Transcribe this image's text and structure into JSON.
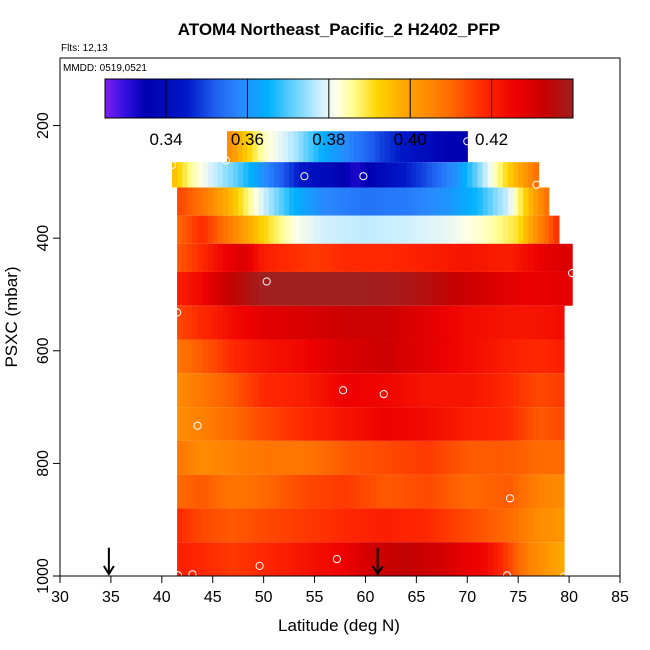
{
  "chart_data": {
    "type": "heatmap",
    "title": "ATOM4 Northeast_Pacific_2 H2402_PFP",
    "flights_note": "Flts: 12,13",
    "date_note": "MMDD: 0519,0521",
    "xlabel": "Latitude (deg N)",
    "ylabel": "PSXC (mbar)",
    "xlim": [
      30,
      85
    ],
    "ylim": [
      1000,
      80
    ],
    "y_reversed": true,
    "grid": false,
    "x_ticks": [
      30,
      35,
      40,
      45,
      50,
      55,
      60,
      65,
      70,
      75,
      80,
      85
    ],
    "y_ticks": [
      200,
      400,
      600,
      800,
      1000
    ],
    "colorbar": {
      "placement": "top, inside plot",
      "range": [
        0.325,
        0.44
      ],
      "ticks": [
        0.34,
        0.36,
        0.38,
        0.4,
        0.42
      ],
      "tick_labels": [
        "0.34",
        "0.36",
        "0.38",
        "0.40",
        "0.42"
      ]
    },
    "palette_stops": [
      [
        0.325,
        "#8020f0"
      ],
      [
        0.33,
        "#3010e0"
      ],
      [
        0.335,
        "#0000b0"
      ],
      [
        0.345,
        "#0018c8"
      ],
      [
        0.352,
        "#1e60f0"
      ],
      [
        0.358,
        "#2a88ff"
      ],
      [
        0.365,
        "#00b0ff"
      ],
      [
        0.372,
        "#70d4ff"
      ],
      [
        0.378,
        "#d0f0ff"
      ],
      [
        0.382,
        "#ffffe6"
      ],
      [
        0.386,
        "#fffe90"
      ],
      [
        0.392,
        "#ffd400"
      ],
      [
        0.398,
        "#ffaa00"
      ],
      [
        0.404,
        "#ff8c00"
      ],
      [
        0.41,
        "#ff6a00"
      ],
      [
        0.418,
        "#ff2800"
      ],
      [
        0.426,
        "#ee0000"
      ],
      [
        0.433,
        "#c80000"
      ],
      [
        0.44,
        "#a02020"
      ]
    ],
    "layers": [
      {
        "pmin": 210,
        "pmax": 265,
        "lat_start": 46.4,
        "lat_end": 70.0,
        "lats": [
          46.4,
          48,
          50,
          53,
          56,
          59,
          62,
          65,
          68,
          70
        ],
        "vals": [
          0.405,
          0.395,
          0.384,
          0.376,
          0.364,
          0.356,
          0.348,
          0.342,
          0.336,
          0.335
        ]
      },
      {
        "pmin": 265,
        "pmax": 310,
        "lat_start": 41.0,
        "lat_end": 77.0,
        "lats": [
          41,
          43,
          45,
          47,
          49,
          51,
          54,
          57,
          59,
          61,
          63,
          66,
          69,
          71,
          73,
          75,
          77
        ],
        "vals": [
          0.396,
          0.385,
          0.378,
          0.372,
          0.364,
          0.355,
          0.343,
          0.338,
          0.332,
          0.337,
          0.343,
          0.35,
          0.36,
          0.372,
          0.386,
          0.398,
          0.41
        ]
      },
      {
        "pmin": 310,
        "pmax": 360,
        "lat_start": 41.5,
        "lat_end": 78.0,
        "lats": [
          41.5,
          44,
          47,
          50,
          53,
          56,
          60,
          64,
          68,
          71,
          74,
          76,
          78
        ],
        "vals": [
          0.415,
          0.408,
          0.395,
          0.378,
          0.365,
          0.358,
          0.355,
          0.356,
          0.36,
          0.366,
          0.378,
          0.395,
          0.41
        ]
      },
      {
        "pmin": 360,
        "pmax": 410,
        "lat_start": 41.5,
        "lat_end": 79.0,
        "lats": [
          41.5,
          44,
          47,
          50,
          53,
          56,
          60,
          64,
          68,
          72,
          75,
          77,
          79
        ],
        "vals": [
          0.41,
          0.418,
          0.405,
          0.392,
          0.382,
          0.378,
          0.377,
          0.378,
          0.38,
          0.384,
          0.39,
          0.405,
          0.418
        ]
      },
      {
        "pmin": 410,
        "pmax": 460,
        "lat_start": 41.5,
        "lat_end": 80.3,
        "lats": [
          41.5,
          44,
          46,
          48,
          50,
          52,
          55,
          58,
          62,
          66,
          70,
          74,
          78,
          80.3
        ],
        "vals": [
          0.412,
          0.418,
          0.425,
          0.43,
          0.42,
          0.418,
          0.416,
          0.418,
          0.418,
          0.42,
          0.422,
          0.42,
          0.428,
          0.43
        ]
      },
      {
        "pmin": 460,
        "pmax": 520,
        "lat_start": 41.5,
        "lat_end": 80.3,
        "lats": [
          41.5,
          44,
          46,
          48,
          50,
          53,
          56,
          60,
          64,
          68,
          72,
          76,
          80.3
        ],
        "vals": [
          0.42,
          0.425,
          0.432,
          0.436,
          0.44,
          0.44,
          0.44,
          0.44,
          0.438,
          0.434,
          0.43,
          0.426,
          0.428
        ]
      },
      {
        "pmin": 520,
        "pmax": 580,
        "lat_start": 41.5,
        "lat_end": 79.5,
        "lats": [
          41.5,
          44,
          47,
          50,
          54,
          58,
          62,
          66,
          70,
          74,
          77,
          79.5
        ],
        "vals": [
          0.414,
          0.418,
          0.424,
          0.428,
          0.43,
          0.432,
          0.432,
          0.428,
          0.424,
          0.422,
          0.422,
          0.424
        ]
      },
      {
        "pmin": 580,
        "pmax": 640,
        "lat_start": 41.5,
        "lat_end": 79.5,
        "lats": [
          41.5,
          44,
          47,
          50,
          54,
          58,
          62,
          66,
          70,
          74,
          77,
          79.5
        ],
        "vals": [
          0.408,
          0.412,
          0.418,
          0.422,
          0.425,
          0.43,
          0.432,
          0.428,
          0.424,
          0.42,
          0.418,
          0.42
        ]
      },
      {
        "pmin": 640,
        "pmax": 700,
        "lat_start": 41.5,
        "lat_end": 79.5,
        "lats": [
          41.5,
          44,
          47,
          50,
          54,
          58,
          62,
          66,
          70,
          74,
          77,
          79.5
        ],
        "vals": [
          0.404,
          0.408,
          0.412,
          0.418,
          0.42,
          0.426,
          0.425,
          0.422,
          0.422,
          0.418,
          0.414,
          0.416
        ]
      },
      {
        "pmin": 700,
        "pmax": 760,
        "lat_start": 41.5,
        "lat_end": 79.5,
        "lats": [
          41.5,
          44,
          47,
          50,
          54,
          58,
          62,
          66,
          70,
          74,
          77,
          79.5
        ],
        "vals": [
          0.404,
          0.406,
          0.41,
          0.414,
          0.418,
          0.422,
          0.426,
          0.424,
          0.42,
          0.418,
          0.412,
          0.414
        ]
      },
      {
        "pmin": 760,
        "pmax": 820,
        "lat_start": 41.5,
        "lat_end": 79.5,
        "lats": [
          41.5,
          44,
          47,
          50,
          54,
          58,
          62,
          66,
          70,
          74,
          77,
          79.5
        ],
        "vals": [
          0.408,
          0.404,
          0.406,
          0.408,
          0.408,
          0.412,
          0.414,
          0.416,
          0.412,
          0.412,
          0.41,
          0.41
        ]
      },
      {
        "pmin": 820,
        "pmax": 880,
        "lat_start": 41.5,
        "lat_end": 79.5,
        "lats": [
          41.5,
          44,
          47,
          50,
          54,
          58,
          62,
          66,
          70,
          74,
          77,
          79.5
        ],
        "vals": [
          0.41,
          0.412,
          0.408,
          0.41,
          0.414,
          0.416,
          0.412,
          0.414,
          0.41,
          0.412,
          0.406,
          0.404
        ]
      },
      {
        "pmin": 880,
        "pmax": 940,
        "lat_start": 41.5,
        "lat_end": 79.5,
        "lats": [
          41.5,
          44,
          47,
          50,
          54,
          58,
          62,
          66,
          70,
          74,
          77,
          79.5
        ],
        "vals": [
          0.418,
          0.414,
          0.412,
          0.414,
          0.416,
          0.418,
          0.42,
          0.418,
          0.414,
          0.41,
          0.404,
          0.402
        ]
      },
      {
        "pmin": 940,
        "pmax": 1000,
        "lat_start": 41.5,
        "lat_end": 79.5,
        "lats": [
          41.5,
          44,
          47,
          50,
          54,
          58,
          61,
          64,
          68,
          72,
          76,
          79.5
        ],
        "vals": [
          0.42,
          0.418,
          0.416,
          0.418,
          0.422,
          0.426,
          0.432,
          0.434,
          0.43,
          0.424,
          0.406,
          0.398
        ]
      }
    ],
    "sample_points": [
      {
        "lat": 70.0,
        "p": 228
      },
      {
        "lat": 54.0,
        "p": 290
      },
      {
        "lat": 59.8,
        "p": 290
      },
      {
        "lat": 46.3,
        "p": 262
      },
      {
        "lat": 41.0,
        "p": 270
      },
      {
        "lat": 76.8,
        "p": 305
      },
      {
        "lat": 50.3,
        "p": 477
      },
      {
        "lat": 80.3,
        "p": 462
      },
      {
        "lat": 41.5,
        "p": 532
      },
      {
        "lat": 57.8,
        "p": 670
      },
      {
        "lat": 61.8,
        "p": 677
      },
      {
        "lat": 80.0,
        "p": 703
      },
      {
        "lat": 43.5,
        "p": 733
      },
      {
        "lat": 74.2,
        "p": 862
      },
      {
        "lat": 57.2,
        "p": 970
      },
      {
        "lat": 49.6,
        "p": 982
      },
      {
        "lat": 43.0,
        "p": 997
      },
      {
        "lat": 41.6,
        "p": 999
      },
      {
        "lat": 73.9,
        "p": 999
      },
      {
        "lat": 79.5,
        "p": 1001
      }
    ],
    "arrows": [
      {
        "lat": 34.8,
        "p": 955
      },
      {
        "lat": 61.2,
        "p": 955
      }
    ]
  }
}
